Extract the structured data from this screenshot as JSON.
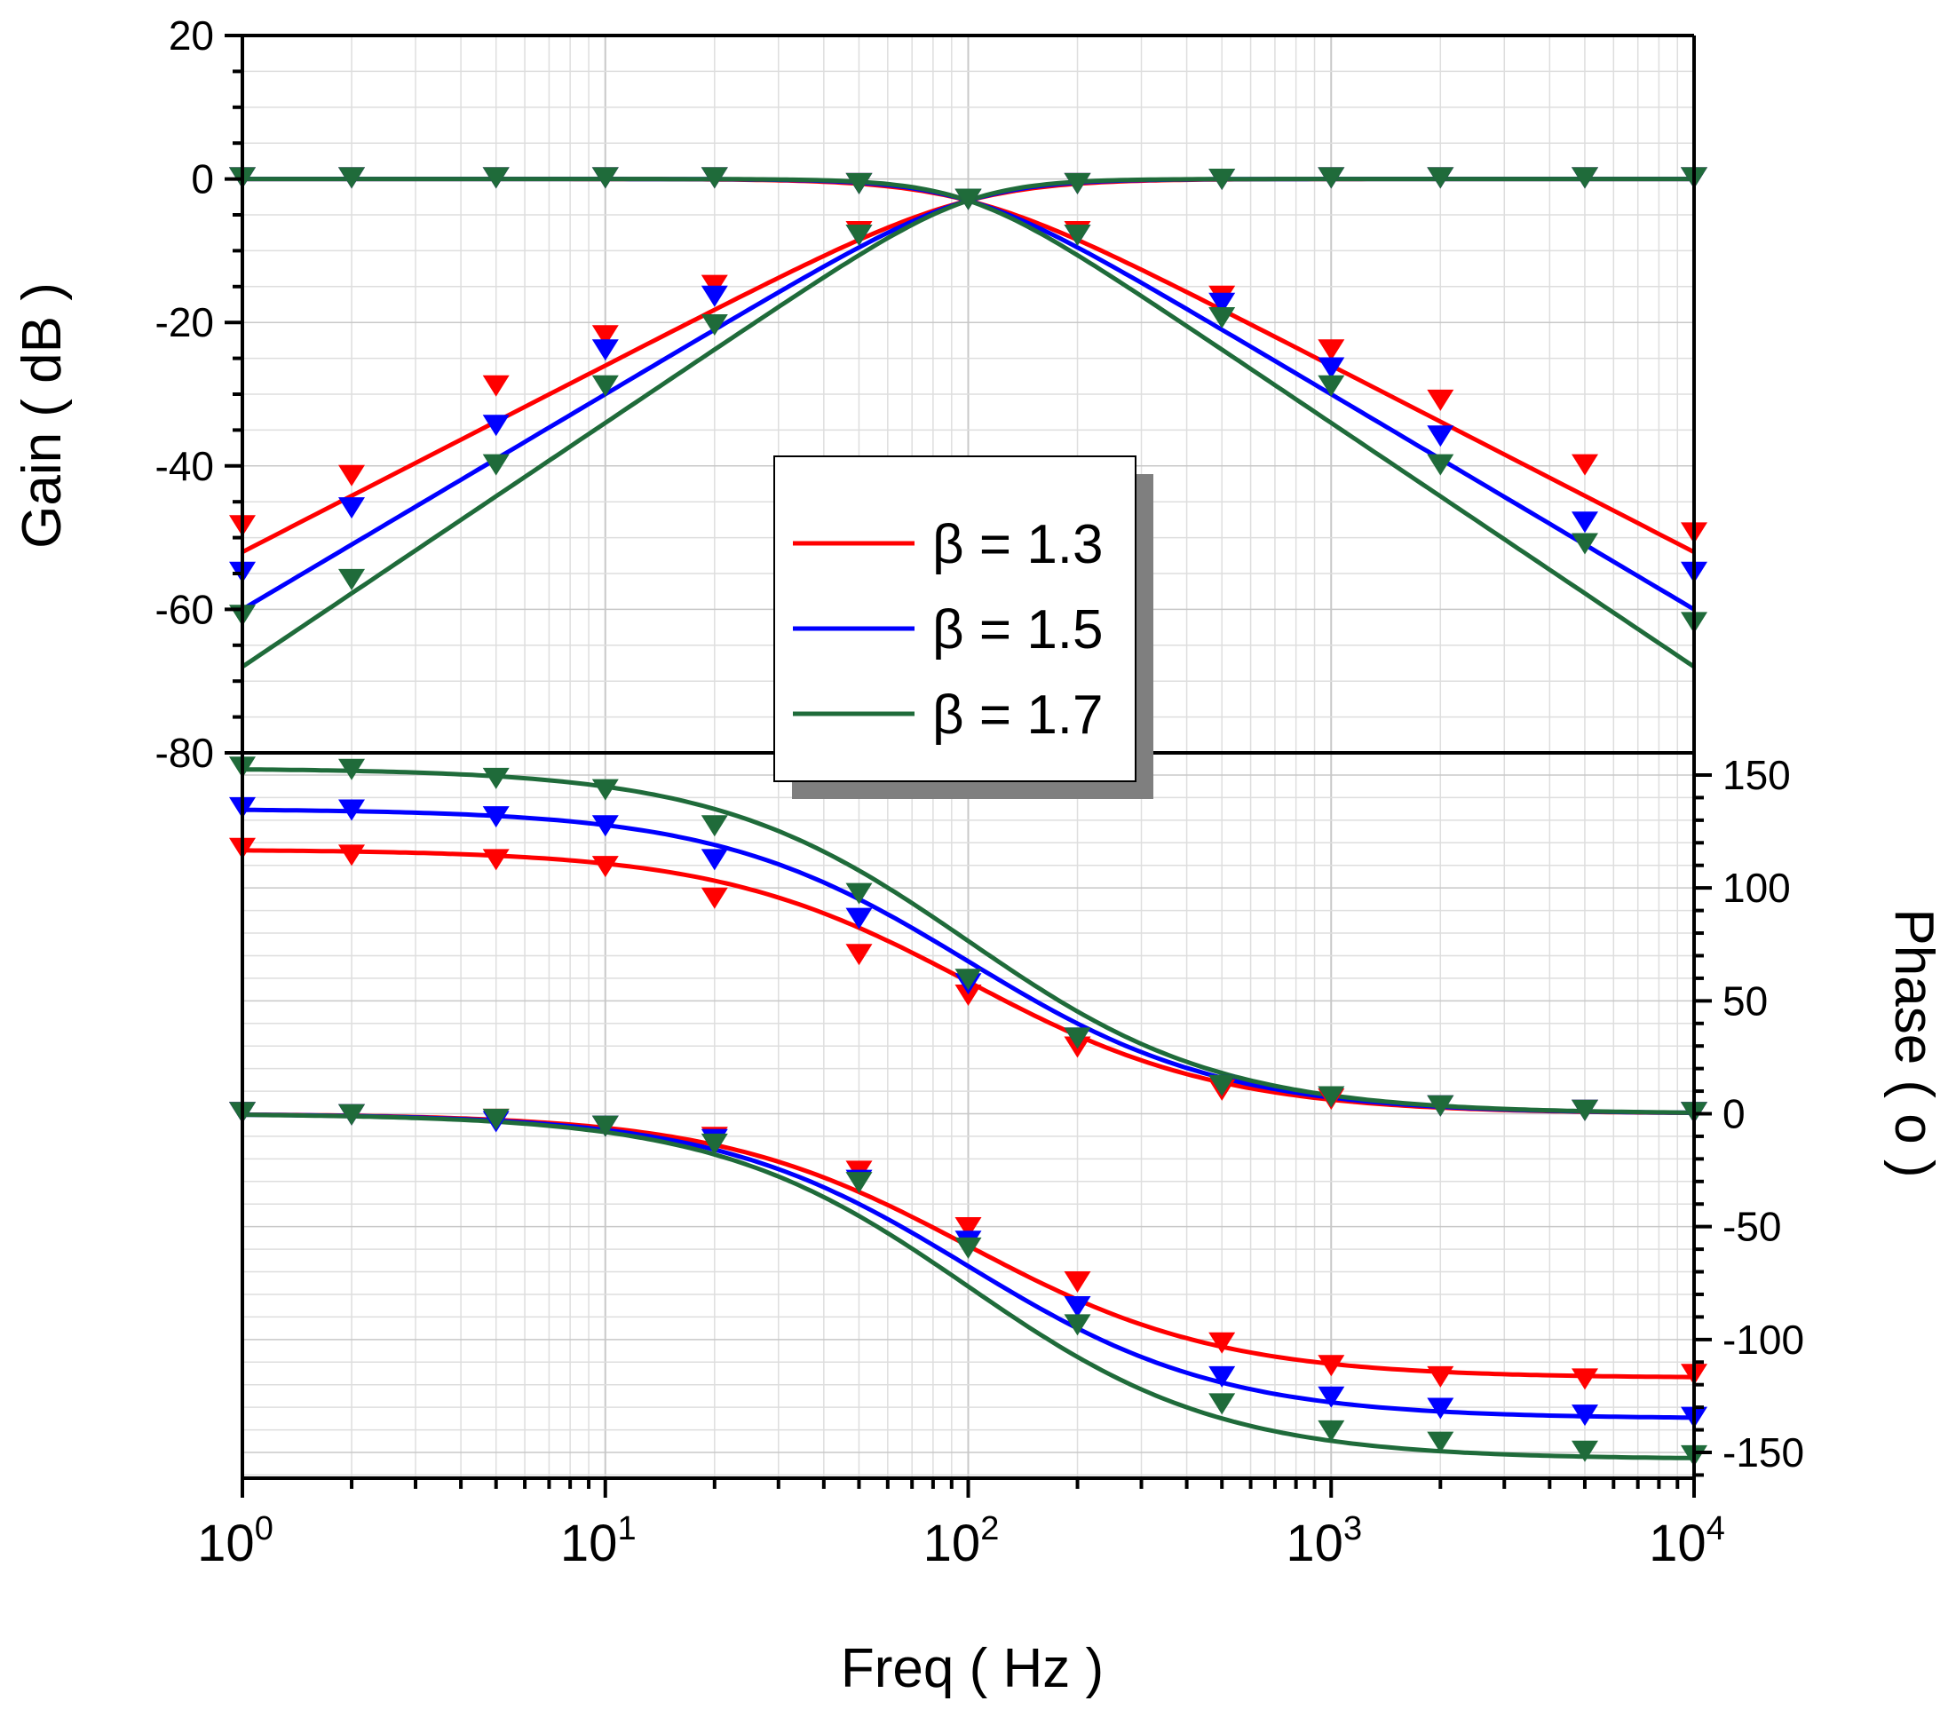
{
  "chart_data": {
    "type": "line",
    "x_scale": "log",
    "xlabel": "Freq ( Hz )",
    "x_ticks": [
      {
        "base": "10",
        "exp": "0",
        "value": 1
      },
      {
        "base": "10",
        "exp": "1",
        "value": 10
      },
      {
        "base": "10",
        "exp": "2",
        "value": 100
      },
      {
        "base": "10",
        "exp": "3",
        "value": 1000
      },
      {
        "base": "10",
        "exp": "4",
        "value": 10000
      }
    ],
    "xlim": [
      1,
      10000
    ],
    "gain_panel": {
      "ylabel": "Gain ( dB )",
      "ylim": [
        -80,
        20
      ],
      "y_ticks": [
        {
          "value": 20,
          "label": "20"
        },
        {
          "value": 0,
          "label": "0"
        },
        {
          "value": -20,
          "label": "-20"
        },
        {
          "value": -40,
          "label": "-40"
        },
        {
          "value": -60,
          "label": "-60"
        },
        {
          "value": -80,
          "label": "-80"
        }
      ]
    },
    "phase_panel": {
      "ylabel": "Phase ( o )",
      "ylim": [
        -160,
        150
      ],
      "y_ticks": [
        {
          "value": 150,
          "label": "150"
        },
        {
          "value": 100,
          "label": "100"
        },
        {
          "value": 50,
          "label": "50"
        },
        {
          "value": 0,
          "label": "0"
        },
        {
          "value": -50,
          "label": "-50"
        },
        {
          "value": -100,
          "label": "-100"
        },
        {
          "value": -150,
          "label": "-150"
        }
      ]
    },
    "marker_freqs": [
      1,
      2,
      5,
      10,
      20,
      50,
      100,
      200,
      500,
      1000,
      2000,
      5000,
      10000
    ],
    "legend": [
      {
        "label": "β = 1.3",
        "color": "#ff0000"
      },
      {
        "label": "β = 1.5",
        "color": "#0000ff"
      },
      {
        "label": "β = 1.7",
        "color": "#1f6b3a"
      }
    ],
    "series": [
      {
        "name": "β = 1.3",
        "panel": "gain",
        "color": "#ff0000",
        "beta": 1.3,
        "kind": "highpass",
        "markers": [
          -48.5,
          -41.5,
          -29,
          -22,
          -15,
          -7.5,
          -3,
          -0.8,
          -0.2,
          0,
          0,
          0,
          0
        ]
      },
      {
        "name": "β = 1.3",
        "panel": "gain",
        "color": "#ff0000",
        "beta": 1.3,
        "kind": "lowpass",
        "markers": [
          0,
          0,
          0,
          0,
          0,
          -0.8,
          -3,
          -7.5,
          -16.5,
          -24,
          -31,
          -40,
          -49.5
        ]
      },
      {
        "name": "β = 1.5",
        "panel": "gain",
        "color": "#0000ff",
        "beta": 1.5,
        "kind": "highpass",
        "markers": [
          -55,
          -46,
          -34.5,
          -24,
          -16.5,
          -8,
          -3,
          -0.8,
          -0.2,
          0,
          0,
          0,
          0
        ]
      },
      {
        "name": "β = 1.5",
        "panel": "gain",
        "color": "#0000ff",
        "beta": 1.5,
        "kind": "lowpass",
        "markers": [
          0,
          0,
          0,
          0,
          0,
          -0.8,
          -3,
          -8,
          -17.5,
          -26.5,
          -36,
          -48,
          -55
        ]
      },
      {
        "name": "β = 1.7",
        "panel": "gain",
        "color": "#1f6b3a",
        "beta": 1.7,
        "kind": "highpass",
        "markers": [
          -61,
          -56,
          -40,
          -29,
          -20.5,
          -8,
          -3,
          -0.8,
          -0.2,
          0,
          0,
          0,
          0
        ]
      },
      {
        "name": "β = 1.7",
        "panel": "gain",
        "color": "#1f6b3a",
        "beta": 1.7,
        "kind": "lowpass",
        "markers": [
          0,
          0,
          0,
          0,
          0,
          -0.8,
          -3,
          -8,
          -19.5,
          -29,
          -40,
          -51,
          -62
        ]
      },
      {
        "name": "β = 1.3",
        "panel": "phase",
        "color": "#ff0000",
        "beta": 1.3,
        "kind": "highpass",
        "markers": [
          117,
          114,
          112,
          109,
          95,
          70,
          52,
          29,
          10,
          6,
          3,
          1,
          0
        ]
      },
      {
        "name": "β = 1.5",
        "panel": "phase",
        "color": "#0000ff",
        "beta": 1.5,
        "kind": "highpass",
        "markers": [
          135,
          134,
          131,
          127,
          112,
          86,
          57,
          33,
          12,
          7,
          3,
          1,
          0
        ]
      },
      {
        "name": "β = 1.7",
        "panel": "phase",
        "color": "#1f6b3a",
        "beta": 1.7,
        "kind": "highpass",
        "markers": [
          153,
          152,
          148,
          143,
          127,
          97,
          59,
          33,
          12,
          7,
          3,
          1,
          0
        ]
      },
      {
        "name": "β = 1.3",
        "panel": "phase",
        "color": "#ff0000",
        "beta": 1.3,
        "kind": "lowpass",
        "markers": [
          0,
          -1,
          -3,
          -6,
          -11,
          -26,
          -51,
          -75,
          -102,
          -112,
          -117,
          -118,
          -116
        ]
      },
      {
        "name": "β = 1.5",
        "panel": "phase",
        "color": "#0000ff",
        "beta": 1.5,
        "kind": "lowpass",
        "markers": [
          0,
          -1,
          -4,
          -6,
          -12,
          -30,
          -57,
          -86,
          -117,
          -126,
          -131,
          -134,
          -135
        ]
      },
      {
        "name": "β = 1.7",
        "panel": "phase",
        "color": "#1f6b3a",
        "beta": 1.7,
        "kind": "lowpass",
        "markers": [
          0,
          -1,
          -3,
          -6,
          -14,
          -31,
          -60,
          -94,
          -129,
          -141,
          -146,
          -150,
          -152
        ]
      }
    ]
  }
}
